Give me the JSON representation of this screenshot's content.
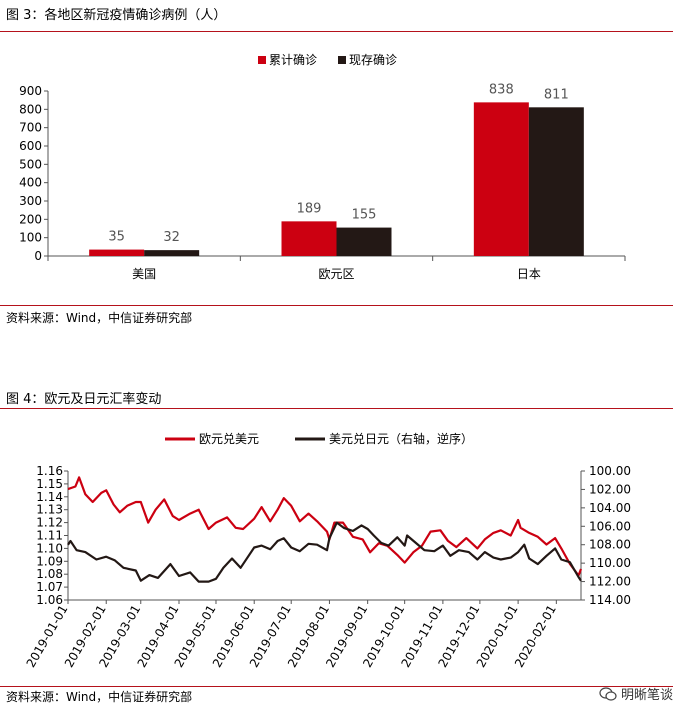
{
  "figure3": {
    "title": "图 3：各地区新冠疫情确诊病例（人）",
    "source": "资料来源：Wind，中信证券研究部"
  },
  "figure4": {
    "title": "图 4：欧元及日元汇率变动",
    "source": "资料来源：Wind，中信证券研究部"
  },
  "watermark": {
    "text": "明晰笔谈",
    "icon": "wechat-icon"
  },
  "colors": {
    "red": "#cc0011",
    "dark": "#231815",
    "rule": "#b5121b",
    "axis": "#555555"
  },
  "chart_data": [
    {
      "type": "bar",
      "title": "",
      "categories": [
        "美国",
        "欧元区",
        "日本"
      ],
      "series": [
        {
          "name": "累计确诊",
          "values": [
            35,
            189,
            838
          ],
          "color": "#cc0011"
        },
        {
          "name": "现存确诊",
          "values": [
            32,
            155,
            811
          ],
          "color": "#231815"
        }
      ],
      "ylim": [
        0,
        900
      ],
      "yticks": [
        0,
        100,
        200,
        300,
        400,
        500,
        600,
        700,
        800,
        900
      ],
      "xlabel": "",
      "ylabel": "",
      "legend": "top-center",
      "grid": false
    },
    {
      "type": "line",
      "title": "",
      "x_range": [
        "2019-01-01",
        "2020-02-21"
      ],
      "xticks": [
        "2019-01-01",
        "2019-02-01",
        "2019-03-01",
        "2019-04-01",
        "2019-05-01",
        "2019-06-01",
        "2019-07-01",
        "2019-08-01",
        "2019-09-01",
        "2019-10-01",
        "2019-11-01",
        "2019-12-01",
        "2020-01-01",
        "2020-02-01"
      ],
      "y_left": {
        "ylim": [
          1.06,
          1.16
        ],
        "yticks": [
          "1.06",
          "1.07",
          "1.08",
          "1.09",
          "1.10",
          "1.11",
          "1.12",
          "1.13",
          "1.14",
          "1.15",
          "1.16"
        ]
      },
      "y_right": {
        "ylim": [
          100,
          114
        ],
        "inverted": true,
        "yticks": [
          "100.00",
          "102.00",
          "104.00",
          "106.00",
          "108.00",
          "110.00",
          "112.00",
          "114.00"
        ]
      },
      "legend": "top-center",
      "grid": false,
      "series": [
        {
          "name": "欧元兑美元",
          "axis": "left",
          "color": "#cc0011",
          "points": [
            [
              "2019-01-01",
              1.146
            ],
            [
              "2019-01-07",
              1.148
            ],
            [
              "2019-01-10",
              1.155
            ],
            [
              "2019-01-15",
              1.142
            ],
            [
              "2019-01-21",
              1.136
            ],
            [
              "2019-01-28",
              1.143
            ],
            [
              "2019-02-01",
              1.145
            ],
            [
              "2019-02-07",
              1.134
            ],
            [
              "2019-02-12",
              1.128
            ],
            [
              "2019-02-18",
              1.133
            ],
            [
              "2019-02-25",
              1.136
            ],
            [
              "2019-03-01",
              1.136
            ],
            [
              "2019-03-07",
              1.12
            ],
            [
              "2019-03-13",
              1.13
            ],
            [
              "2019-03-20",
              1.138
            ],
            [
              "2019-03-27",
              1.125
            ],
            [
              "2019-04-01",
              1.122
            ],
            [
              "2019-04-10",
              1.127
            ],
            [
              "2019-04-17",
              1.13
            ],
            [
              "2019-04-25",
              1.115
            ],
            [
              "2019-05-01",
              1.12
            ],
            [
              "2019-05-10",
              1.124
            ],
            [
              "2019-05-17",
              1.116
            ],
            [
              "2019-05-23",
              1.115
            ],
            [
              "2019-06-01",
              1.123
            ],
            [
              "2019-06-07",
              1.132
            ],
            [
              "2019-06-14",
              1.121
            ],
            [
              "2019-06-20",
              1.13
            ],
            [
              "2019-06-25",
              1.139
            ],
            [
              "2019-07-01",
              1.133
            ],
            [
              "2019-07-08",
              1.121
            ],
            [
              "2019-07-15",
              1.127
            ],
            [
              "2019-07-22",
              1.121
            ],
            [
              "2019-07-30",
              1.113
            ],
            [
              "2019-08-01",
              1.107
            ],
            [
              "2019-08-05",
              1.12
            ],
            [
              "2019-08-12",
              1.12
            ],
            [
              "2019-08-20",
              1.109
            ],
            [
              "2019-08-28",
              1.107
            ],
            [
              "2019-09-03",
              1.097
            ],
            [
              "2019-09-10",
              1.104
            ],
            [
              "2019-09-17",
              1.102
            ],
            [
              "2019-09-25",
              1.095
            ],
            [
              "2019-10-01",
              1.089
            ],
            [
              "2019-10-08",
              1.097
            ],
            [
              "2019-10-15",
              1.102
            ],
            [
              "2019-10-22",
              1.113
            ],
            [
              "2019-10-30",
              1.114
            ],
            [
              "2019-11-05",
              1.106
            ],
            [
              "2019-11-12",
              1.101
            ],
            [
              "2019-11-20",
              1.108
            ],
            [
              "2019-11-29",
              1.1
            ],
            [
              "2019-12-05",
              1.107
            ],
            [
              "2019-12-12",
              1.112
            ],
            [
              "2019-12-18",
              1.114
            ],
            [
              "2019-12-26",
              1.11
            ],
            [
              "2020-01-01",
              1.122
            ],
            [
              "2020-01-03",
              1.116
            ],
            [
              "2020-01-10",
              1.112
            ],
            [
              "2020-01-17",
              1.109
            ],
            [
              "2020-01-24",
              1.103
            ],
            [
              "2020-01-31",
              1.108
            ],
            [
              "2020-02-05",
              1.1
            ],
            [
              "2020-02-12",
              1.088
            ],
            [
              "2020-02-19",
              1.079
            ],
            [
              "2020-02-21",
              1.084
            ]
          ]
        },
        {
          "name": "美元兑日元（右轴，逆序）",
          "axis": "right",
          "color": "#231815",
          "points": [
            [
              "2019-01-01",
              108.0
            ],
            [
              "2019-01-03",
              107.6
            ],
            [
              "2019-01-08",
              108.6
            ],
            [
              "2019-01-15",
              108.8
            ],
            [
              "2019-01-24",
              109.6
            ],
            [
              "2019-02-01",
              109.3
            ],
            [
              "2019-02-08",
              109.7
            ],
            [
              "2019-02-15",
              110.5
            ],
            [
              "2019-02-25",
              110.8
            ],
            [
              "2019-03-01",
              111.9
            ],
            [
              "2019-03-08",
              111.3
            ],
            [
              "2019-03-15",
              111.6
            ],
            [
              "2019-03-25",
              110.1
            ],
            [
              "2019-04-01",
              111.4
            ],
            [
              "2019-04-10",
              111.0
            ],
            [
              "2019-04-17",
              112.0
            ],
            [
              "2019-04-25",
              112.0
            ],
            [
              "2019-05-01",
              111.7
            ],
            [
              "2019-05-07",
              110.5
            ],
            [
              "2019-05-14",
              109.5
            ],
            [
              "2019-05-21",
              110.5
            ],
            [
              "2019-06-01",
              108.3
            ],
            [
              "2019-06-07",
              108.1
            ],
            [
              "2019-06-14",
              108.5
            ],
            [
              "2019-06-20",
              107.6
            ],
            [
              "2019-06-25",
              107.3
            ],
            [
              "2019-07-01",
              108.3
            ],
            [
              "2019-07-08",
              108.7
            ],
            [
              "2019-07-15",
              107.9
            ],
            [
              "2019-07-22",
              108.0
            ],
            [
              "2019-07-30",
              108.6
            ],
            [
              "2019-08-01",
              107.3
            ],
            [
              "2019-08-07",
              105.6
            ],
            [
              "2019-08-13",
              106.2
            ],
            [
              "2019-08-20",
              106.5
            ],
            [
              "2019-08-27",
              105.9
            ],
            [
              "2019-09-01",
              106.3
            ],
            [
              "2019-09-06",
              107.0
            ],
            [
              "2019-09-12",
              107.8
            ],
            [
              "2019-09-18",
              108.1
            ],
            [
              "2019-09-25",
              107.2
            ],
            [
              "2019-10-01",
              108.1
            ],
            [
              "2019-10-03",
              107.0
            ],
            [
              "2019-10-10",
              107.8
            ],
            [
              "2019-10-17",
              108.6
            ],
            [
              "2019-10-25",
              108.7
            ],
            [
              "2019-11-01",
              108.1
            ],
            [
              "2019-11-07",
              109.2
            ],
            [
              "2019-11-14",
              108.6
            ],
            [
              "2019-11-22",
              108.8
            ],
            [
              "2019-11-29",
              109.6
            ],
            [
              "2019-12-05",
              108.8
            ],
            [
              "2019-12-12",
              109.4
            ],
            [
              "2019-12-18",
              109.6
            ],
            [
              "2019-12-26",
              109.4
            ],
            [
              "2020-01-01",
              108.8
            ],
            [
              "2020-01-06",
              108.0
            ],
            [
              "2020-01-10",
              109.5
            ],
            [
              "2020-01-17",
              110.1
            ],
            [
              "2020-01-24",
              109.2
            ],
            [
              "2020-01-31",
              108.4
            ],
            [
              "2020-02-05",
              109.6
            ],
            [
              "2020-02-12",
              109.9
            ],
            [
              "2020-02-19",
              111.5
            ],
            [
              "2020-02-21",
              111.9
            ]
          ]
        }
      ]
    }
  ]
}
